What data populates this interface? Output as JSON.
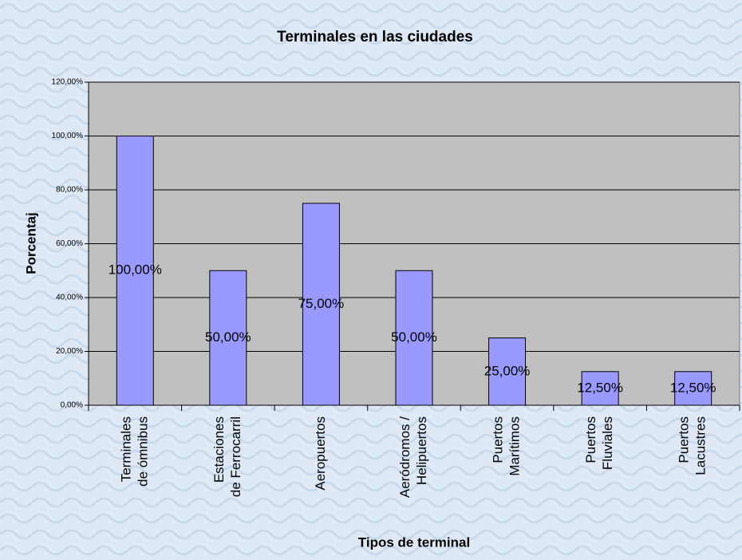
{
  "chart_data": {
    "type": "bar",
    "title": "Terminales en las ciudades",
    "x_label": "Tipos de terminal",
    "y_label": "Porcentaj",
    "categories": [
      [
        "Terminales",
        "de ómnibus"
      ],
      [
        "Estaciones",
        "de Ferrocarril"
      ],
      [
        "Aeropuertos"
      ],
      [
        "Aeródromos /",
        "Helipuertos"
      ],
      [
        "Puertos",
        "Marítimos"
      ],
      [
        "Puertos",
        "Fluviales"
      ],
      [
        "Puertos",
        "Lacustres"
      ]
    ],
    "values": [
      100,
      50,
      75,
      50,
      25,
      12.5,
      12.5
    ],
    "value_labels": [
      "100,00%",
      "50,00%",
      "75,00%",
      "50,00%",
      "25,00%",
      "12,50%",
      "12,50%"
    ],
    "color": "#9999ff",
    "ylim": [
      0,
      120
    ],
    "yticks": [
      {
        "value": 0,
        "label": "0,00%"
      },
      {
        "value": 20,
        "label": "20,00%"
      },
      {
        "value": 40,
        "label": "40,00%"
      },
      {
        "value": 60,
        "label": "60,00%"
      },
      {
        "value": 80,
        "label": "80,00%"
      },
      {
        "value": 100,
        "label": "100,00%"
      },
      {
        "value": 120,
        "label": "120,00%"
      }
    ],
    "grid": true
  }
}
